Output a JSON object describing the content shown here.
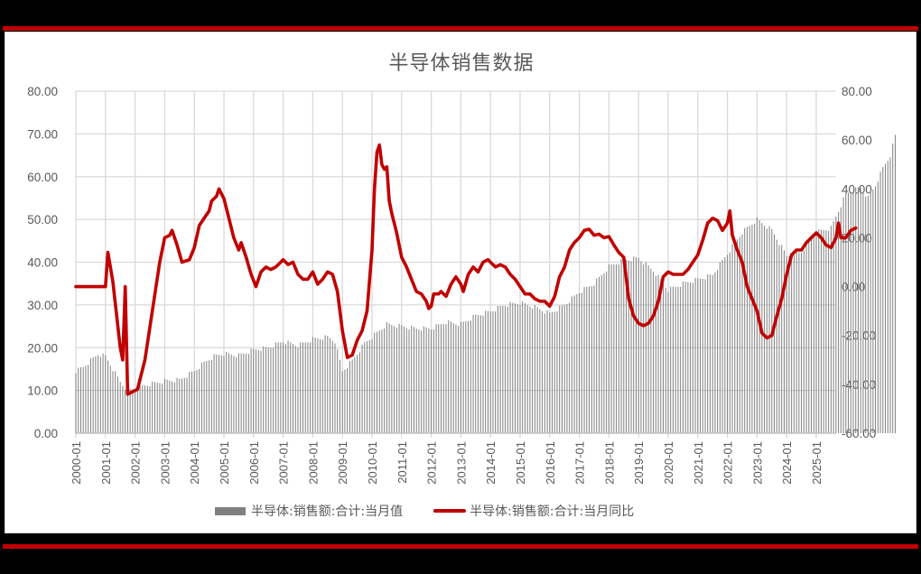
{
  "frame": {
    "accent_color": "#c00000",
    "background": "#000000",
    "panel_bg": "#ffffff"
  },
  "chart": {
    "title": "半导体销售数据",
    "legend": [
      {
        "label": "半导体:销售额:合计:当月值",
        "type": "bar",
        "color": "#808080"
      },
      {
        "label": "半导体:销售额:合计:当月同比",
        "type": "line",
        "color": "#c00000"
      }
    ]
  },
  "chart_data": {
    "type": "bar+line",
    "title": "半导体销售数据",
    "xlabel": "",
    "ylabel_left": "",
    "ylabel_right": "",
    "x_tick_labels": [
      "2000-01",
      "2001-01",
      "2002-01",
      "2003-01",
      "2004-01",
      "2005-01",
      "2006-01",
      "2007-01",
      "2008-01",
      "2009-01",
      "2010-01",
      "2011-01",
      "2012-01",
      "2013-01",
      "2014-01",
      "2015-01",
      "2016-01",
      "2017-01",
      "2018-01",
      "2019-01",
      "2020-01",
      "2021-01",
      "2022-01",
      "2023-01",
      "2024-01",
      "2025-01"
    ],
    "y_left_ticks": [
      "0.00",
      "10.00",
      "20.00",
      "30.00",
      "40.00",
      "50.00",
      "60.00",
      "70.00",
      "80.00"
    ],
    "y_right_ticks": [
      "-60.00",
      "-40.00",
      "-20.00",
      "0.00",
      "20.00",
      "40.00",
      "60.00",
      "80.00"
    ],
    "ylim_left": [
      0,
      80
    ],
    "ylim_right": [
      -60,
      80
    ],
    "grid": true,
    "legend_position": "bottom",
    "x_start": "2000-01",
    "x_end": "2025-08",
    "series": [
      {
        "name": "半导体:销售额:合计:当月值",
        "type": "bar",
        "axis": "left",
        "keypoints_month_index_value": [
          [
            0,
            14.5
          ],
          [
            3,
            15.5
          ],
          [
            6,
            17
          ],
          [
            9,
            18.5
          ],
          [
            12,
            18
          ],
          [
            15,
            15
          ],
          [
            18,
            12
          ],
          [
            21,
            10
          ],
          [
            24,
            10.5
          ],
          [
            30,
            11.5
          ],
          [
            36,
            12.2
          ],
          [
            42,
            12.5
          ],
          [
            48,
            14.5
          ],
          [
            52,
            16.5
          ],
          [
            56,
            18
          ],
          [
            60,
            18.6
          ],
          [
            66,
            18.2
          ],
          [
            72,
            19.5
          ],
          [
            78,
            20
          ],
          [
            84,
            21.5
          ],
          [
            90,
            20.5
          ],
          [
            96,
            22
          ],
          [
            102,
            22.5
          ],
          [
            105,
            21.5
          ],
          [
            108,
            14.5
          ],
          [
            112,
            17
          ],
          [
            117,
            21
          ],
          [
            120,
            22.5
          ],
          [
            126,
            25.5
          ],
          [
            132,
            25
          ],
          [
            138,
            24.5
          ],
          [
            144,
            24.5
          ],
          [
            150,
            26
          ],
          [
            156,
            25.5
          ],
          [
            162,
            27.5
          ],
          [
            168,
            28.5
          ],
          [
            174,
            30
          ],
          [
            180,
            30.5
          ],
          [
            186,
            29.5
          ],
          [
            192,
            28
          ],
          [
            198,
            30
          ],
          [
            204,
            33
          ],
          [
            210,
            35
          ],
          [
            216,
            39
          ],
          [
            222,
            40.5
          ],
          [
            228,
            41
          ],
          [
            234,
            38
          ],
          [
            240,
            33.5
          ],
          [
            246,
            35
          ],
          [
            252,
            36
          ],
          [
            258,
            37
          ],
          [
            264,
            42
          ],
          [
            270,
            47
          ],
          [
            276,
            50
          ],
          [
            282,
            47.5
          ],
          [
            288,
            41.5
          ],
          [
            294,
            42.5
          ],
          [
            300,
            47
          ],
          [
            306,
            48
          ],
          [
            312,
            56
          ],
          [
            318,
            57.5
          ],
          [
            321,
            55
          ],
          [
            324,
            58
          ],
          [
            327,
            62
          ],
          [
            330,
            65
          ],
          [
            332,
            69.5
          ]
        ]
      },
      {
        "name": "半导体:销售额:合计:当月同比",
        "type": "line",
        "axis": "right",
        "keypoints_month_index_value": [
          [
            0,
            0
          ],
          [
            12,
            0
          ],
          [
            13,
            14
          ],
          [
            15,
            2
          ],
          [
            18,
            -25
          ],
          [
            19,
            -30
          ],
          [
            20,
            0
          ],
          [
            21,
            -44
          ],
          [
            23,
            -43
          ],
          [
            25,
            -42
          ],
          [
            28,
            -30
          ],
          [
            31,
            -10
          ],
          [
            34,
            10
          ],
          [
            36,
            20
          ],
          [
            38,
            21
          ],
          [
            39,
            23
          ],
          [
            41,
            17
          ],
          [
            43,
            10
          ],
          [
            46,
            11
          ],
          [
            48,
            16
          ],
          [
            50,
            25
          ],
          [
            52,
            28
          ],
          [
            54,
            31
          ],
          [
            55,
            35
          ],
          [
            57,
            37
          ],
          [
            58,
            40
          ],
          [
            60,
            36
          ],
          [
            62,
            28
          ],
          [
            64,
            20
          ],
          [
            66,
            15
          ],
          [
            67,
            18
          ],
          [
            69,
            12
          ],
          [
            71,
            5
          ],
          [
            73,
            0
          ],
          [
            75,
            6
          ],
          [
            77,
            8
          ],
          [
            79,
            7
          ],
          [
            81,
            8
          ],
          [
            83,
            10
          ],
          [
            84,
            11
          ],
          [
            86,
            9
          ],
          [
            88,
            10
          ],
          [
            90,
            5
          ],
          [
            92,
            3
          ],
          [
            94,
            3
          ],
          [
            96,
            6
          ],
          [
            98,
            1
          ],
          [
            100,
            3
          ],
          [
            102,
            6
          ],
          [
            104,
            5
          ],
          [
            106,
            -2
          ],
          [
            108,
            -18
          ],
          [
            110,
            -29
          ],
          [
            112,
            -28
          ],
          [
            114,
            -22
          ],
          [
            116,
            -18
          ],
          [
            118,
            -10
          ],
          [
            120,
            15
          ],
          [
            121,
            40
          ],
          [
            122,
            55
          ],
          [
            123,
            58
          ],
          [
            124,
            50
          ],
          [
            125,
            48
          ],
          [
            126,
            49
          ],
          [
            127,
            35
          ],
          [
            128,
            30
          ],
          [
            130,
            22
          ],
          [
            132,
            12
          ],
          [
            134,
            8
          ],
          [
            136,
            3
          ],
          [
            138,
            -2
          ],
          [
            140,
            -3
          ],
          [
            142,
            -6
          ],
          [
            143,
            -9
          ],
          [
            144,
            -8
          ],
          [
            145,
            -3
          ],
          [
            147,
            -3
          ],
          [
            148,
            -2
          ],
          [
            150,
            -4
          ],
          [
            152,
            1
          ],
          [
            154,
            4
          ],
          [
            156,
            1
          ],
          [
            157,
            -2
          ],
          [
            159,
            5
          ],
          [
            161,
            8
          ],
          [
            163,
            6
          ],
          [
            165,
            10
          ],
          [
            167,
            11
          ],
          [
            168,
            10
          ],
          [
            170,
            8
          ],
          [
            172,
            9
          ],
          [
            174,
            8
          ],
          [
            176,
            5
          ],
          [
            178,
            3
          ],
          [
            180,
            0
          ],
          [
            182,
            -3
          ],
          [
            184,
            -3
          ],
          [
            186,
            -5
          ],
          [
            188,
            -6
          ],
          [
            190,
            -6
          ],
          [
            192,
            -8
          ],
          [
            194,
            -4
          ],
          [
            196,
            4
          ],
          [
            198,
            8
          ],
          [
            200,
            15
          ],
          [
            202,
            18
          ],
          [
            204,
            20
          ],
          [
            206,
            23
          ],
          [
            208,
            23.5
          ],
          [
            210,
            21
          ],
          [
            212,
            21.5
          ],
          [
            214,
            20
          ],
          [
            216,
            20.5
          ],
          [
            218,
            17
          ],
          [
            220,
            14
          ],
          [
            222,
            12
          ],
          [
            224,
            -5
          ],
          [
            226,
            -12
          ],
          [
            228,
            -15
          ],
          [
            230,
            -16
          ],
          [
            232,
            -15
          ],
          [
            234,
            -12
          ],
          [
            236,
            -6
          ],
          [
            238,
            4
          ],
          [
            240,
            6
          ],
          [
            242,
            5
          ],
          [
            244,
            5
          ],
          [
            246,
            5
          ],
          [
            248,
            7
          ],
          [
            250,
            10
          ],
          [
            252,
            13
          ],
          [
            254,
            19
          ],
          [
            256,
            26
          ],
          [
            258,
            28
          ],
          [
            260,
            27
          ],
          [
            262,
            23
          ],
          [
            264,
            26
          ],
          [
            265,
            31
          ],
          [
            266,
            21
          ],
          [
            268,
            15
          ],
          [
            270,
            10
          ],
          [
            272,
            0
          ],
          [
            274,
            -5
          ],
          [
            276,
            -10
          ],
          [
            278,
            -19
          ],
          [
            280,
            -21
          ],
          [
            282,
            -20
          ],
          [
            284,
            -12
          ],
          [
            286,
            -5
          ],
          [
            288,
            5
          ],
          [
            290,
            13
          ],
          [
            292,
            15
          ],
          [
            294,
            15
          ],
          [
            296,
            18
          ],
          [
            298,
            20
          ],
          [
            300,
            22
          ],
          [
            302,
            20
          ],
          [
            304,
            17
          ],
          [
            306,
            16
          ],
          [
            308,
            20
          ],
          [
            309,
            26
          ],
          [
            310,
            20
          ],
          [
            312,
            20
          ],
          [
            314,
            23
          ],
          [
            316,
            24
          ]
        ]
      }
    ]
  }
}
